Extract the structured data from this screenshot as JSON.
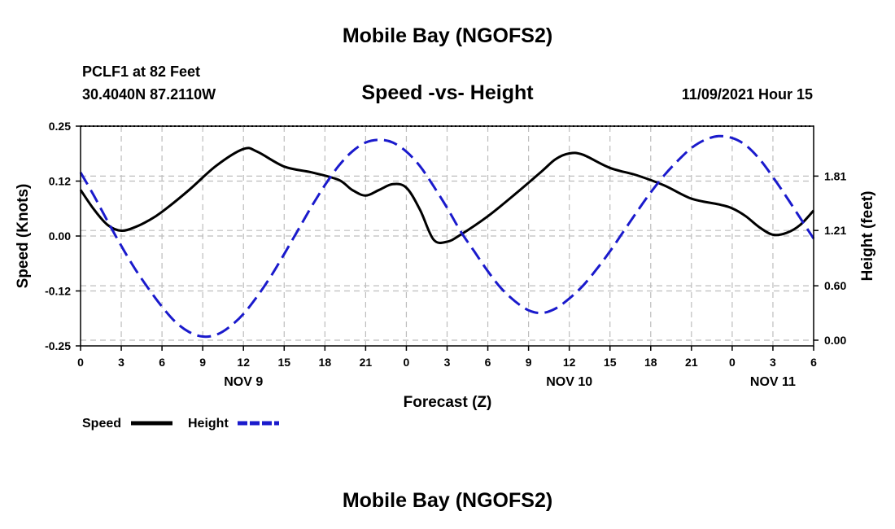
{
  "header": {
    "title": "Mobile Bay (NGOFS2)",
    "station": "PCLF1 at 82 Feet",
    "coordinates": "30.4040N  87.2110W",
    "datetime": "11/09/2021 Hour 15"
  },
  "footer": {
    "title": "Mobile Bay (NGOFS2)"
  },
  "chart_data": {
    "type": "line",
    "title": "Speed -vs- Height",
    "xlabel": "Forecast (Z)",
    "ylabel_left": "Speed (Knots)",
    "ylabel_right": "Height (feet)",
    "x_hour_range": [
      0,
      54
    ],
    "x_ticks": [
      {
        "hour": 0,
        "label": "0"
      },
      {
        "hour": 3,
        "label": "3"
      },
      {
        "hour": 6,
        "label": "6"
      },
      {
        "hour": 9,
        "label": "9"
      },
      {
        "hour": 12,
        "label": "12"
      },
      {
        "hour": 15,
        "label": "15"
      },
      {
        "hour": 18,
        "label": "18"
      },
      {
        "hour": 21,
        "label": "21"
      },
      {
        "hour": 24,
        "label": "0"
      },
      {
        "hour": 27,
        "label": "3"
      },
      {
        "hour": 30,
        "label": "6"
      },
      {
        "hour": 33,
        "label": "9"
      },
      {
        "hour": 36,
        "label": "12"
      },
      {
        "hour": 39,
        "label": "15"
      },
      {
        "hour": 42,
        "label": "18"
      },
      {
        "hour": 45,
        "label": "21"
      },
      {
        "hour": 48,
        "label": "0"
      },
      {
        "hour": 51,
        "label": "3"
      },
      {
        "hour": 54,
        "label": "6"
      }
    ],
    "day_labels": [
      {
        "hour": 12,
        "label": "NOV 9"
      },
      {
        "hour": 36,
        "label": "NOV 10"
      },
      {
        "hour": 51,
        "label": "NOV 11"
      }
    ],
    "ylim_left": [
      -0.25,
      0.25
    ],
    "yticks_left": [
      "0.25",
      "0.12",
      "0.00",
      "-0.12",
      "-0.25"
    ],
    "ylim_right": [
      0.0,
      2.45
    ],
    "yticks_right": [
      "1.81",
      "1.21",
      "0.60",
      "0.00"
    ],
    "grid": true,
    "legend_position": "bottom-left",
    "series": [
      {
        "name": "Speed",
        "color": "#000000",
        "style": "solid",
        "axis": "left",
        "x": [
          0,
          1,
          2,
          3,
          4,
          5,
          6,
          8,
          10,
          12,
          13,
          15,
          17,
          19,
          20,
          21,
          22,
          23,
          24,
          25,
          26,
          27,
          28,
          30,
          32,
          34,
          35,
          36,
          37,
          39,
          41,
          43,
          45,
          47,
          48,
          49,
          50,
          51,
          52,
          53,
          54
        ],
        "y": [
          0.105,
          0.06,
          0.025,
          0.012,
          0.02,
          0.035,
          0.055,
          0.105,
          0.16,
          0.198,
          0.192,
          0.158,
          0.145,
          0.128,
          0.105,
          0.092,
          0.105,
          0.118,
          0.11,
          0.06,
          -0.008,
          -0.013,
          0.003,
          0.045,
          0.095,
          0.148,
          0.175,
          0.188,
          0.185,
          0.155,
          0.138,
          0.115,
          0.085,
          0.072,
          0.063,
          0.045,
          0.02,
          0.003,
          0.007,
          0.025,
          0.058
        ]
      },
      {
        "name": "Height",
        "color": "#1a1acc",
        "style": "dashed",
        "axis": "right",
        "x": [
          0,
          1,
          2,
          3,
          4,
          5,
          6,
          7,
          8,
          9,
          10,
          11,
          12,
          13,
          14,
          15,
          16,
          17,
          18,
          19,
          20,
          21,
          22,
          23,
          24,
          25,
          26,
          27,
          28,
          29,
          30,
          31,
          32,
          33,
          34,
          35,
          36,
          37,
          38,
          39,
          40,
          41,
          42,
          43,
          44,
          45,
          46,
          47,
          48,
          49,
          50,
          51,
          52,
          53,
          54
        ],
        "y": [
          1.85,
          1.59,
          1.31,
          1.04,
          0.79,
          0.57,
          0.37,
          0.2,
          0.09,
          0.04,
          0.06,
          0.15,
          0.29,
          0.48,
          0.7,
          0.95,
          1.21,
          1.47,
          1.71,
          1.92,
          2.08,
          2.18,
          2.21,
          2.18,
          2.08,
          1.92,
          1.7,
          1.46,
          1.2,
          0.98,
          0.76,
          0.57,
          0.43,
          0.33,
          0.3,
          0.35,
          0.46,
          0.6,
          0.78,
          0.98,
          1.2,
          1.42,
          1.63,
          1.82,
          1.98,
          2.12,
          2.21,
          2.25,
          2.23,
          2.15,
          2.0,
          1.8,
          1.58,
          1.35,
          1.12
        ]
      }
    ]
  }
}
